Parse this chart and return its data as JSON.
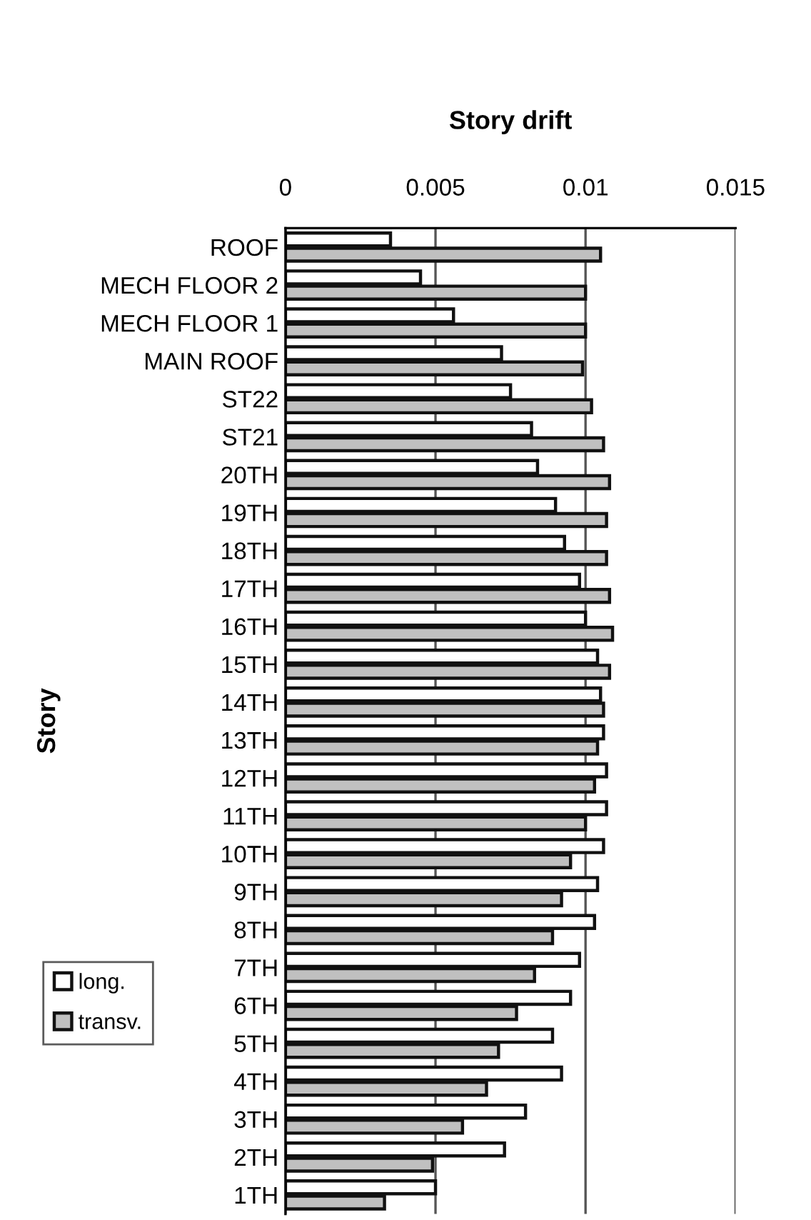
{
  "chart_data": {
    "type": "bar",
    "orientation": "horizontal",
    "title": "Story drift",
    "ylabel": "Story",
    "categories": [
      "ROOF",
      "MECH FLOOR 2",
      "MECH FLOOR 1",
      "MAIN ROOF",
      "ST22",
      "ST21",
      "20TH",
      "19TH",
      "18TH",
      "17TH",
      "16TH",
      "15TH",
      "14TH",
      "13TH",
      "12TH",
      "11TH",
      "10TH",
      "9TH",
      "8TH",
      "7TH",
      "6TH",
      "5TH",
      "4TH",
      "3TH",
      "2TH",
      "1TH"
    ],
    "series": [
      {
        "name": "long.",
        "color": "#ffffff",
        "values": [
          0.0035,
          0.0045,
          0.0056,
          0.0072,
          0.0075,
          0.0082,
          0.0084,
          0.009,
          0.0093,
          0.0098,
          0.01,
          0.0104,
          0.0105,
          0.0106,
          0.0107,
          0.0107,
          0.0106,
          0.0104,
          0.0103,
          0.0098,
          0.0095,
          0.0089,
          0.0092,
          0.008,
          0.0073,
          0.005
        ]
      },
      {
        "name": "transv.",
        "color": "#c0c0c0",
        "values": [
          0.0105,
          0.01,
          0.01,
          0.0099,
          0.0102,
          0.0106,
          0.0108,
          0.0107,
          0.0107,
          0.0108,
          0.0109,
          0.0108,
          0.0106,
          0.0104,
          0.0103,
          0.01,
          0.0095,
          0.0092,
          0.0089,
          0.0083,
          0.0077,
          0.0071,
          0.0067,
          0.0059,
          0.0049,
          0.0033
        ]
      }
    ],
    "xlim": [
      0,
      0.015
    ],
    "xticks": [
      0,
      0.005,
      0.01,
      0.015
    ],
    "grid": "x",
    "legend": "bottom left"
  }
}
